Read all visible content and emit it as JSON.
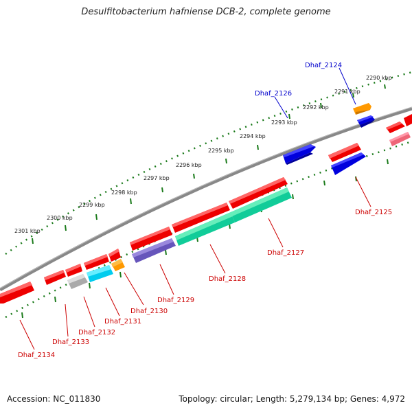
{
  "title": "Desulfitobacterium hafniense DCB-2, complete genome",
  "footer": {
    "accession": "Accession: NC_011830",
    "summary": "Topology: circular; Length: 5,279,134 bp; Genes: 4,972"
  },
  "ticks": [
    "2290 kbp",
    "2291 kbp",
    "2292 kbp",
    "2293 kbp",
    "2294 kbp",
    "2295 kbp",
    "2296 kbp",
    "2297 kbp",
    "2298 kbp",
    "2299 kbp",
    "2300 kbp",
    "2301 kbp"
  ],
  "gene_labels": [
    {
      "name": "Dhaf_2124",
      "color": "#0000cc"
    },
    {
      "name": "Dhaf_2126",
      "color": "#0000cc"
    },
    {
      "name": "Dhaf_2125",
      "color": "#cc0000"
    },
    {
      "name": "Dhaf_2127",
      "color": "#cc0000"
    },
    {
      "name": "Dhaf_2128",
      "color": "#cc0000"
    },
    {
      "name": "Dhaf_2129",
      "color": "#cc0000"
    },
    {
      "name": "Dhaf_2130",
      "color": "#cc0000"
    },
    {
      "name": "Dhaf_2131",
      "color": "#cc0000"
    },
    {
      "name": "Dhaf_2132",
      "color": "#cc0000"
    },
    {
      "name": "Dhaf_2133",
      "color": "#cc0000"
    },
    {
      "name": "Dhaf_2134",
      "color": "#cc0000"
    }
  ],
  "colors": {
    "backbone": "#777777",
    "tick_track": "#1a7a1a",
    "red": "#ee0000",
    "blue": "#0000dd",
    "orange": "#ff9900",
    "purple": "#6655bb",
    "teal": "#11cc99",
    "cyan": "#00ccee",
    "grey": "#aaaaaa",
    "pink": "#ee6677"
  }
}
